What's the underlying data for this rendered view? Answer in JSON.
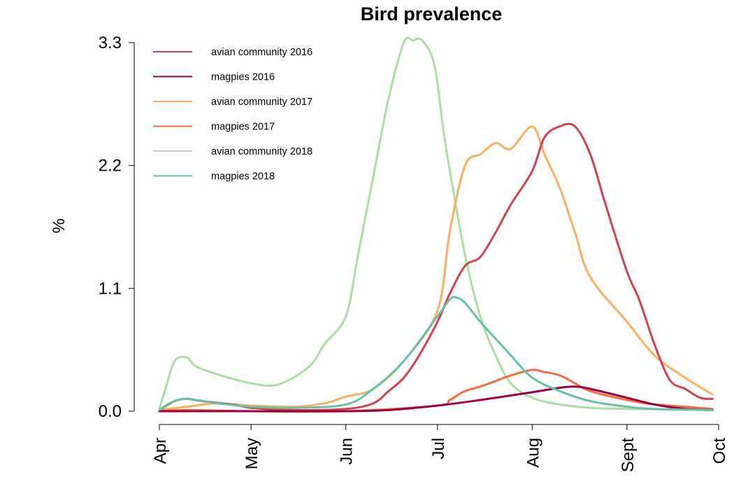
{
  "chart_data": {
    "type": "line",
    "title": "Bird prevalence",
    "xlabel": "",
    "ylabel": "%",
    "ylim": [
      0,
      3.3
    ],
    "yticks": [
      0.0,
      1.1,
      2.2,
      3.3
    ],
    "ytick_labels": [
      "0.0",
      "1.1",
      "2.2",
      "3.3"
    ],
    "xlim": [
      "2016-04-01",
      "2016-10-01"
    ],
    "xticks": [
      "2016-04-01",
      "2016-05-01",
      "2016-06-01",
      "2016-07-01",
      "2016-08-01",
      "2016-09-01",
      "2016-10-01"
    ],
    "xtick_labels": [
      "Apr",
      "May",
      "Jun",
      "Jul",
      "Aug",
      "Sept",
      "Oct"
    ],
    "grid": false,
    "legend_position": "top-left",
    "series": [
      {
        "name": "avian community 2016",
        "color": "#d1414f",
        "x": [
          "2016-04-01",
          "2016-04-06",
          "2016-04-10",
          "2016-04-15",
          "2016-04-25",
          "2016-05-01",
          "2016-05-15",
          "2016-06-01",
          "2016-06-10",
          "2016-06-15",
          "2016-06-20",
          "2016-06-25",
          "2016-07-01",
          "2016-07-05",
          "2016-07-10",
          "2016-07-15",
          "2016-07-20",
          "2016-07-25",
          "2016-08-01",
          "2016-08-05",
          "2016-08-10",
          "2016-08-15",
          "2016-08-20",
          "2016-08-25",
          "2016-09-01",
          "2016-09-05",
          "2016-09-10",
          "2016-09-15",
          "2016-09-20",
          "2016-09-25",
          "2016-09-29"
        ],
        "values": [
          0.01,
          0.09,
          0.11,
          0.09,
          0.06,
          0.03,
          0.01,
          0.02,
          0.07,
          0.18,
          0.3,
          0.5,
          0.8,
          1.05,
          1.3,
          1.38,
          1.6,
          1.85,
          2.15,
          2.45,
          2.55,
          2.55,
          2.3,
          1.85,
          1.25,
          1.0,
          0.6,
          0.28,
          0.2,
          0.12,
          0.11
        ]
      },
      {
        "name": "magpies 2016",
        "color": "#9e0142",
        "x": [
          "2016-04-01",
          "2016-05-01",
          "2016-06-01",
          "2016-06-15",
          "2016-07-01",
          "2016-07-15",
          "2016-08-01",
          "2016-08-10",
          "2016-08-15",
          "2016-08-20",
          "2016-09-01",
          "2016-09-10",
          "2016-09-20",
          "2016-09-29"
        ],
        "values": [
          0.0,
          0.0,
          0.0,
          0.01,
          0.05,
          0.1,
          0.17,
          0.21,
          0.22,
          0.2,
          0.12,
          0.06,
          0.02,
          0.01
        ]
      },
      {
        "name": "avian community 2017",
        "color": "#fdae61",
        "x": [
          "2016-04-01",
          "2016-04-10",
          "2016-04-20",
          "2016-05-01",
          "2016-05-15",
          "2016-05-25",
          "2016-06-01",
          "2016-06-10",
          "2016-06-20",
          "2016-07-01",
          "2016-07-05",
          "2016-07-10",
          "2016-07-15",
          "2016-07-20",
          "2016-07-25",
          "2016-08-01",
          "2016-08-05",
          "2016-08-10",
          "2016-08-15",
          "2016-08-20",
          "2016-09-01",
          "2016-09-10",
          "2016-09-20",
          "2016-09-29"
        ],
        "values": [
          0.01,
          0.04,
          0.07,
          0.05,
          0.04,
          0.07,
          0.13,
          0.2,
          0.45,
          0.9,
          1.6,
          2.2,
          2.3,
          2.4,
          2.35,
          2.55,
          2.3,
          2.0,
          1.6,
          1.2,
          0.8,
          0.5,
          0.3,
          0.15
        ]
      },
      {
        "name": "magpies 2017",
        "color": "#f46d43",
        "x": [
          "2016-04-01",
          "2016-04-10",
          "2016-05-01",
          "2016-06-01",
          "2016-07-01",
          "2016-07-05",
          "2016-07-10",
          "2016-07-15",
          "2016-07-20",
          "2016-07-25",
          "2016-08-01",
          "2016-08-05",
          "2016-08-10",
          "2016-08-15",
          "2016-08-20",
          "2016-09-01",
          "2016-09-10",
          "2016-09-20",
          "2016-09-29"
        ],
        "values": [
          0.0,
          0.01,
          0.0,
          0.0,
          0.05,
          0.1,
          0.18,
          0.22,
          0.27,
          0.32,
          0.37,
          0.35,
          0.32,
          0.25,
          0.18,
          0.1,
          0.06,
          0.04,
          0.02
        ]
      },
      {
        "name": "avian community 2018",
        "color": "#abdda4",
        "x": [
          "2016-04-01",
          "2016-04-03",
          "2016-04-06",
          "2016-04-10",
          "2016-04-13",
          "2016-04-20",
          "2016-05-01",
          "2016-05-10",
          "2016-05-20",
          "2016-05-25",
          "2016-06-01",
          "2016-06-05",
          "2016-06-10",
          "2016-06-15",
          "2016-06-20",
          "2016-06-23",
          "2016-06-26",
          "2016-06-30",
          "2016-07-03",
          "2016-07-06",
          "2016-07-10",
          "2016-07-15",
          "2016-07-20",
          "2016-07-25",
          "2016-08-01",
          "2016-08-10",
          "2016-08-20",
          "2016-09-01",
          "2016-09-29"
        ],
        "values": [
          0.02,
          0.2,
          0.45,
          0.48,
          0.4,
          0.33,
          0.25,
          0.24,
          0.4,
          0.6,
          0.85,
          1.4,
          2.1,
          2.8,
          3.3,
          3.32,
          3.32,
          3.1,
          2.5,
          2.0,
          1.4,
          0.85,
          0.5,
          0.25,
          0.12,
          0.06,
          0.03,
          0.02,
          0.01
        ]
      },
      {
        "name": "magpies 2018",
        "color": "#66c2a5",
        "x": [
          "2016-04-01",
          "2016-04-05",
          "2016-04-10",
          "2016-04-20",
          "2016-05-01",
          "2016-05-15",
          "2016-06-01",
          "2016-06-10",
          "2016-06-20",
          "2016-07-01",
          "2016-07-05",
          "2016-07-07",
          "2016-07-10",
          "2016-07-15",
          "2016-07-20",
          "2016-07-25",
          "2016-08-01",
          "2016-08-10",
          "2016-08-20",
          "2016-09-01",
          "2016-09-10",
          "2016-09-29"
        ],
        "values": [
          0.01,
          0.08,
          0.11,
          0.07,
          0.04,
          0.03,
          0.06,
          0.2,
          0.45,
          0.85,
          1.0,
          1.02,
          0.97,
          0.8,
          0.65,
          0.5,
          0.3,
          0.18,
          0.09,
          0.04,
          0.02,
          0.01
        ]
      }
    ]
  }
}
